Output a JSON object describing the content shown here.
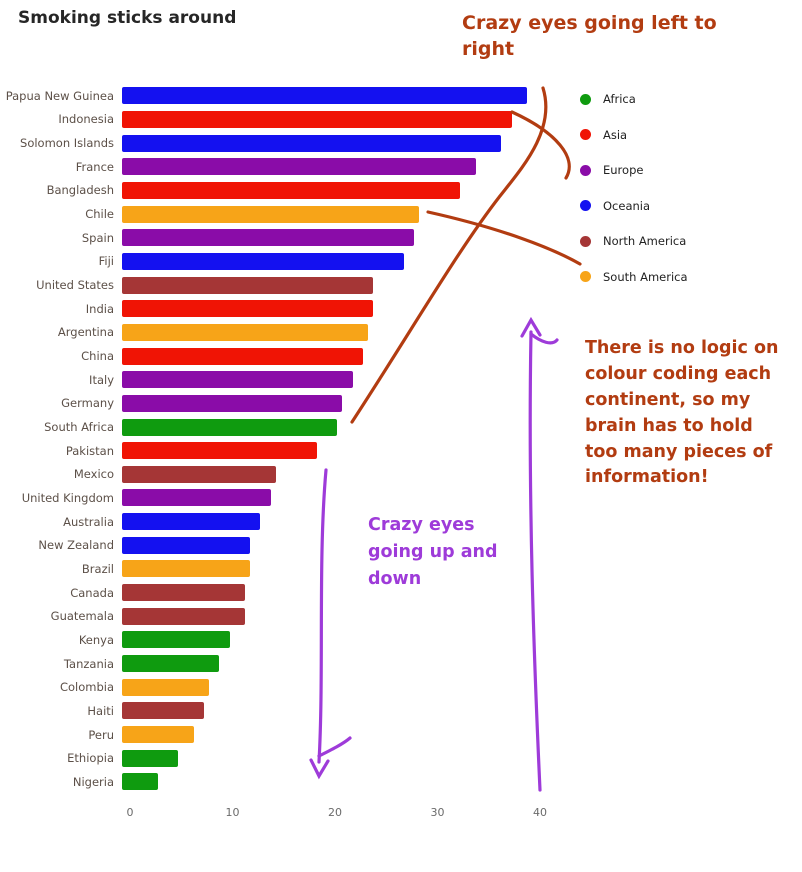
{
  "title": "Smoking sticks around",
  "chart_data": {
    "type": "bar",
    "orientation": "horizontal",
    "title": "Smoking sticks around",
    "xlabel": "",
    "ylabel": "",
    "xlim": [
      0,
      40
    ],
    "x_ticks": [
      0,
      10,
      20,
      30,
      40
    ],
    "grid": false,
    "legend_position": "right",
    "categories": [
      "Papua New Guinea",
      "Indonesia",
      "Solomon Islands",
      "France",
      "Bangladesh",
      "Chile",
      "Spain",
      "Fiji",
      "United States",
      "India",
      "Argentina",
      "China",
      "Italy",
      "Germany",
      "South Africa",
      "Pakistan",
      "Mexico",
      "United Kingdom",
      "Australia",
      "New Zealand",
      "Brazil",
      "Canada",
      "Guatemala",
      "Kenya",
      "Tanzania",
      "Colombia",
      "Haiti",
      "Peru",
      "Ethiopia",
      "Nigeria"
    ],
    "values": [
      39.5,
      38,
      37,
      34.5,
      33,
      29,
      28.5,
      27.5,
      24.5,
      24.5,
      24,
      23.5,
      22.5,
      21.5,
      21,
      19,
      15,
      14.5,
      13.5,
      12.5,
      12.5,
      12,
      12,
      10.5,
      9.5,
      8.5,
      8,
      7,
      5.5,
      3.5
    ],
    "continents": [
      "Oceania",
      "Asia",
      "Oceania",
      "Europe",
      "Asia",
      "South America",
      "Europe",
      "Oceania",
      "North America",
      "Asia",
      "South America",
      "Asia",
      "Europe",
      "Europe",
      "Africa",
      "Asia",
      "North America",
      "Europe",
      "Oceania",
      "Oceania",
      "South America",
      "North America",
      "North America",
      "Africa",
      "Africa",
      "South America",
      "North America",
      "South America",
      "Africa",
      "Africa"
    ],
    "colors": {
      "Africa": "#0f9b0f",
      "Asia": "#f01405",
      "Europe": "#8a0ca8",
      "Oceania": "#1411f0",
      "North America": "#a53636",
      "South America": "#f7a418"
    },
    "legend": [
      {
        "label": "Africa",
        "color": "#0f9b0f"
      },
      {
        "label": "Asia",
        "color": "#f01405"
      },
      {
        "label": "Europe",
        "color": "#8a0ca8"
      },
      {
        "label": "Oceania",
        "color": "#1411f0"
      },
      {
        "label": "North America",
        "color": "#a53636"
      },
      {
        "label": "South America",
        "color": "#f7a418"
      }
    ]
  },
  "annotations": {
    "top_note": "Crazy eyes going left to right",
    "middle_note": "Crazy eyes going up and down",
    "right_note": "There is no logic on colour coding each continent, so my brain has to hold too many pieces of information!",
    "rust_color": "#b23c11",
    "purple_color": "#9e3bd9"
  }
}
